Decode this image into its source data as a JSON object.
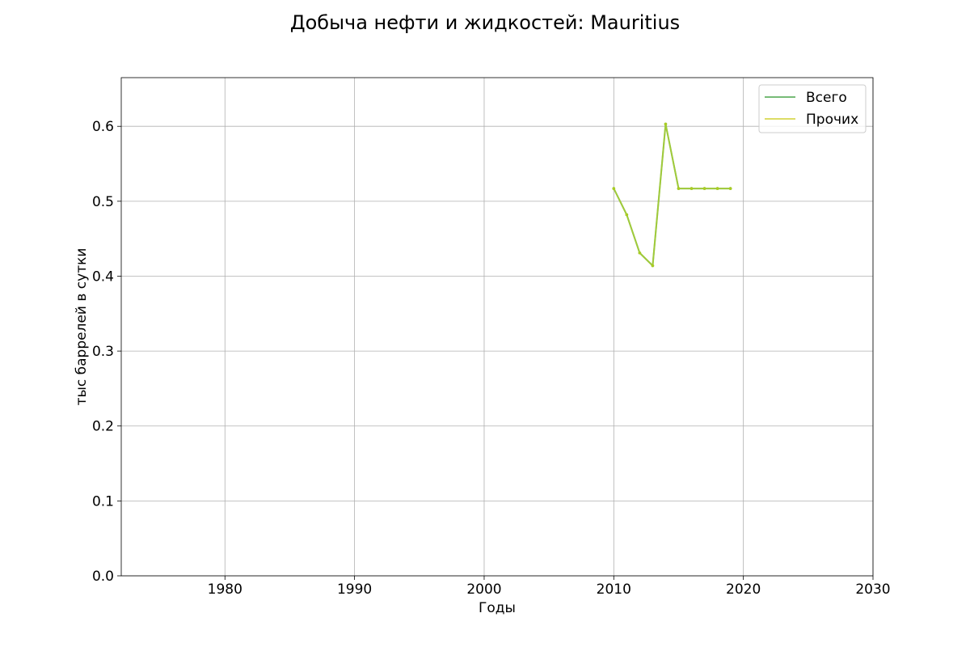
{
  "chart_data": {
    "type": "line",
    "title": "Добыча нефти и жидкостей: Mauritius",
    "xlabel": "Годы",
    "ylabel": "тыс баррелей в сутки",
    "xlim": [
      1972,
      2030
    ],
    "ylim": [
      0,
      0.665
    ],
    "x_ticks": [
      1980,
      1990,
      2000,
      2010,
      2020,
      2030
    ],
    "y_ticks": [
      0.0,
      0.1,
      0.2,
      0.3,
      0.4,
      0.5,
      0.6
    ],
    "x_tick_labels": [
      "1980",
      "1990",
      "2000",
      "2010",
      "2020",
      "2030"
    ],
    "y_tick_labels": [
      "0.0",
      "0.1",
      "0.2",
      "0.3",
      "0.4",
      "0.5",
      "0.6"
    ],
    "grid": true,
    "legend_position": "top-right",
    "x": [
      2010,
      2011,
      2012,
      2013,
      2014,
      2015,
      2016,
      2017,
      2018,
      2019
    ],
    "series": [
      {
        "name": "Всего",
        "color": "#77bb77",
        "values": [
          0.517,
          0.482,
          0.431,
          0.414,
          0.603,
          0.517,
          0.517,
          0.517,
          0.517,
          0.517
        ]
      },
      {
        "name": "Прочих",
        "color": "#aacc22",
        "legend_color": "#dddd66",
        "values": [
          0.517,
          0.482,
          0.431,
          0.414,
          0.603,
          0.517,
          0.517,
          0.517,
          0.517,
          0.517
        ]
      }
    ]
  }
}
